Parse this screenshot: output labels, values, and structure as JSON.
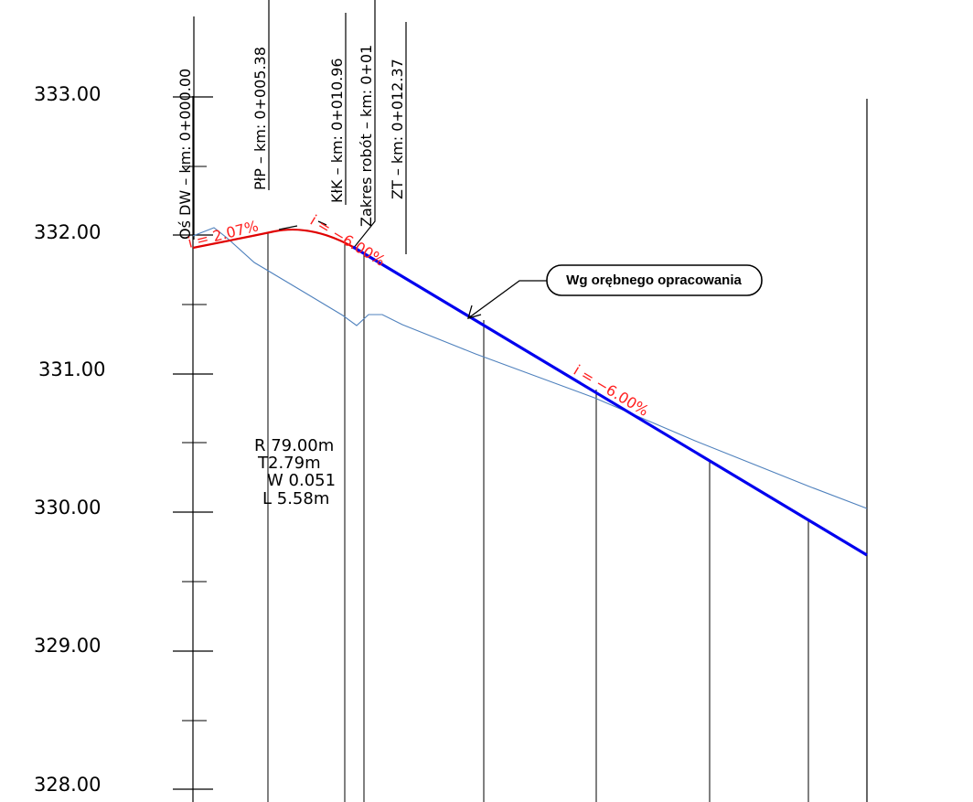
{
  "elevation_labels": [
    "333.00",
    "332.00",
    "331.00",
    "330.00",
    "329.00",
    "328.00"
  ],
  "station_labels": [
    "Oś DW – km: 0+000.00",
    "PłP – km: 0+005.38",
    "KłK – km: 0+010.96",
    "Zakres robót – km: 0+01",
    "ZT – km: 0+012.37"
  ],
  "grade_labels": {
    "first": "i = 2.07%",
    "second": "i = −6.00%",
    "third": "i = −6.00%"
  },
  "curve_params": [
    "R 79.00m",
    "T2.79m",
    "W 0.051",
    "L 5.58m"
  ],
  "callout": {
    "text": "Wg orębnego opracowania"
  },
  "colors": {
    "design_line": "#e00000",
    "grade_text": "#ff2020",
    "existing_ground": "#4f81bd",
    "external_design": "#0000ee",
    "frame": "#000000"
  }
}
